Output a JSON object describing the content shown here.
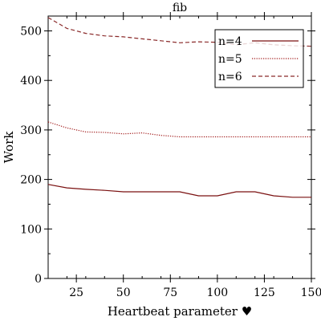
{
  "chart_data": {
    "type": "line",
    "title": "fib",
    "xlabel": "Heartbeat parameter ♥",
    "ylabel": "Work",
    "xlim": [
      10,
      150
    ],
    "ylim": [
      0,
      530
    ],
    "xticks": [
      25,
      50,
      75,
      100,
      125,
      150
    ],
    "yticks": [
      0,
      100,
      200,
      300,
      400,
      500
    ],
    "grid": false,
    "legend_position": "top-right",
    "x": [
      10,
      20,
      30,
      40,
      50,
      60,
      70,
      80,
      90,
      100,
      110,
      120,
      130,
      140,
      150
    ],
    "series": [
      {
        "name": "n=4",
        "style": "solid",
        "color": "#7a1010",
        "values": [
          190,
          183,
          180,
          178,
          175,
          175,
          175,
          175,
          167,
          167,
          175,
          175,
          167,
          164,
          164
        ]
      },
      {
        "name": "n=5",
        "style": "dotted",
        "color": "#a01818",
        "values": [
          316,
          304,
          296,
          295,
          292,
          294,
          289,
          286,
          286,
          286,
          286,
          286,
          286,
          286,
          286
        ]
      },
      {
        "name": "n=6",
        "style": "dashed",
        "color": "#8a2a2a",
        "values": [
          527,
          505,
          495,
          490,
          488,
          484,
          480,
          476,
          478,
          477,
          472,
          476,
          472,
          470,
          469
        ]
      }
    ]
  }
}
